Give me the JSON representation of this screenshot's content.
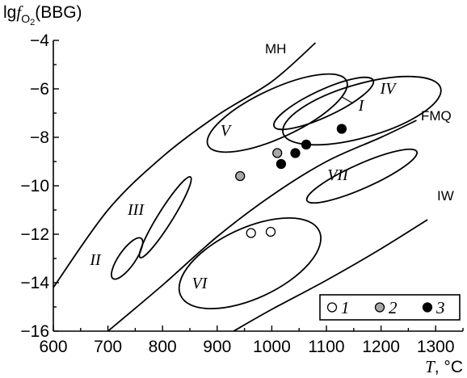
{
  "chart_data": {
    "type": "scatter",
    "title": "",
    "ylabel": {
      "prefix": "lg",
      "italic": "f",
      "subscript": "O",
      "subscript2": "2",
      "suffix": "(BBG)"
    },
    "xlabel": "T, °C",
    "xlim": [
      600,
      1350
    ],
    "ylim": [
      -16,
      -4
    ],
    "x_ticks": [
      "600",
      "700",
      "800",
      "900",
      "1000",
      "1100",
      "1200",
      "1300"
    ],
    "y_ticks": [
      "−4",
      "−6",
      "−8",
      "−10",
      "−12",
      "−14",
      "−16"
    ],
    "buffers": [
      {
        "name": "MH",
        "points": [
          [
            600,
            -14.2
          ],
          [
            700,
            -11.0
          ],
          [
            800,
            -8.8
          ],
          [
            900,
            -7.1
          ],
          [
            1000,
            -5.7
          ],
          [
            1080,
            -4.1
          ]
        ]
      },
      {
        "name": "FMQ",
        "points": [
          [
            700,
            -16.0
          ],
          [
            800,
            -14.1
          ],
          [
            900,
            -12.1
          ],
          [
            1000,
            -10.4
          ],
          [
            1100,
            -9.0
          ],
          [
            1200,
            -8.0
          ],
          [
            1265,
            -7.3
          ]
        ]
      },
      {
        "name": "IW",
        "points": [
          [
            930,
            -16.0
          ],
          [
            1000,
            -15.1
          ],
          [
            1100,
            -13.9
          ],
          [
            1200,
            -12.6
          ],
          [
            1285,
            -11.4
          ]
        ]
      }
    ],
    "fields": [
      {
        "label": "I",
        "cx": 1095,
        "cy": -6.6,
        "rx": 100,
        "ry": 0.55,
        "rotate": -25
      },
      {
        "label": "II",
        "cx": 735,
        "cy": -13.0,
        "rx": 45,
        "ry": 0.34,
        "rotate": -55
      },
      {
        "label": "III",
        "cx": 805,
        "cy": -11.3,
        "rx": 87,
        "ry": 0.3,
        "rotate": -58
      },
      {
        "label": "IV",
        "cx": 1165,
        "cy": -6.9,
        "rx": 150,
        "ry": 1.1,
        "rotate": -16
      },
      {
        "label": "V",
        "cx": 1010,
        "cy": -7.0,
        "rx": 140,
        "ry": 1.0,
        "rotate": -25
      },
      {
        "label": "VI",
        "cx": 960,
        "cy": -13.2,
        "rx": 140,
        "ry": 1.45,
        "rotate": -25
      },
      {
        "label": "VII",
        "cx": 1165,
        "cy": -9.6,
        "rx": 110,
        "ry": 0.5,
        "rotate": -24
      }
    ],
    "series": [
      {
        "name": "1",
        "color": "#ffffff",
        "points": [
          [
            962,
            -11.95
          ],
          [
            998,
            -11.9
          ]
        ]
      },
      {
        "name": "2",
        "color": "#a8a8a8",
        "points": [
          [
            942,
            -9.6
          ],
          [
            1010,
            -8.65
          ]
        ]
      },
      {
        "name": "3",
        "color": "#000000",
        "points": [
          [
            1017,
            -9.1
          ],
          [
            1043,
            -8.65
          ],
          [
            1063,
            -8.3
          ],
          [
            1128,
            -7.65
          ]
        ]
      }
    ],
    "legend_position": "bottom-right",
    "grid": false
  }
}
